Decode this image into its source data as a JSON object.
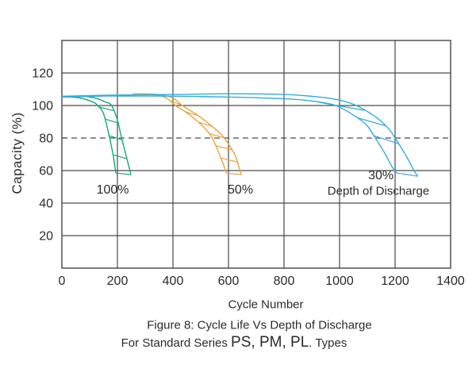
{
  "colors": {
    "background": "#ffffff",
    "grid": "#4a4a4a",
    "border": "#454545",
    "text": "#2b2b2b",
    "dod_100": "#12a77e",
    "dod_50": "#e9a43f",
    "dod_30": "#33acdf"
  },
  "caption": {
    "line1": "Figure 8: Cycle Life Vs Depth of Discharge",
    "line2_prefix": "For Standard Series ",
    "line2_series": "PS, PM, PL",
    "line2_suffix": ". Types"
  },
  "chart_data": {
    "type": "line",
    "title": "Figure 8: Cycle Life Vs Depth of Discharge",
    "xlabel": "Cycle Number",
    "ylabel": "Capacity (%)",
    "xlim": [
      0,
      1400
    ],
    "ylim": [
      0,
      140
    ],
    "x_ticks": [
      0,
      200,
      400,
      600,
      800,
      1000,
      1200,
      1400
    ],
    "y_ticks": [
      20,
      40,
      60,
      80,
      100,
      120
    ],
    "grid": true,
    "dashed_reference_line_y": 80,
    "legend_position": "none",
    "series": [
      {
        "name": "100% Depth of Discharge",
        "color": "#12a77e",
        "band_inner": [
          [
            0,
            105.3
          ],
          [
            60,
            104.8
          ],
          [
            110,
            102.3
          ],
          [
            129,
            100
          ],
          [
            150,
            95
          ],
          [
            172,
            80
          ],
          [
            185,
            69
          ],
          [
            194,
            58.5
          ]
        ],
        "band_outer": [
          [
            0,
            105.6
          ],
          [
            70,
            105.8
          ],
          [
            120,
            104.6
          ],
          [
            155,
            102.3
          ],
          [
            179,
            100
          ],
          [
            200,
            91
          ],
          [
            215,
            80
          ],
          [
            233,
            68
          ],
          [
            249,
            57.5
          ]
        ],
        "rung_levels": [
          98,
          90.5,
          80.2,
          68.5
        ],
        "rung_slant": 1.2
      },
      {
        "name": "50% Depth of Discharge",
        "color": "#e9a43f",
        "band_inner": [
          [
            310,
            107
          ],
          [
            360,
            105.8
          ],
          [
            385,
            103.5
          ],
          [
            409,
            100
          ],
          [
            450,
            95.5
          ],
          [
            490,
            90
          ],
          [
            520,
            85
          ],
          [
            542,
            80
          ],
          [
            565,
            71
          ],
          [
            580,
            64.5
          ],
          [
            592,
            58.5
          ]
        ],
        "band_outer": [
          [
            255,
            107.2
          ],
          [
            330,
            107
          ],
          [
            395,
            105
          ],
          [
            434,
            100
          ],
          [
            485,
            94.5
          ],
          [
            535,
            88
          ],
          [
            575,
            82
          ],
          [
            605,
            75
          ],
          [
            625,
            69
          ],
          [
            638,
            62
          ],
          [
            646,
            57.5
          ]
        ],
        "rung_levels": [
          101.5,
          95,
          88.5,
          81.5,
          74,
          66.5
        ],
        "rung_slant": 1.2
      },
      {
        "name": "30% Depth of Discharge",
        "color": "#33acdf",
        "band_inner": [
          [
            0,
            105.2
          ],
          [
            150,
            105.8
          ],
          [
            350,
            105.8
          ],
          [
            600,
            105.2
          ],
          [
            800,
            104.2
          ],
          [
            900,
            102.8
          ],
          [
            986,
            100
          ],
          [
            1060,
            93
          ],
          [
            1100,
            87.5
          ],
          [
            1129,
            80
          ],
          [
            1165,
            70
          ],
          [
            1190,
            62
          ],
          [
            1206,
            58.5
          ]
        ],
        "band_outer": [
          [
            0,
            105.7
          ],
          [
            150,
            106.3
          ],
          [
            400,
            106.8
          ],
          [
            600,
            107.2
          ],
          [
            800,
            106.8
          ],
          [
            920,
            105.3
          ],
          [
            1000,
            103.3
          ],
          [
            1060,
            100
          ],
          [
            1130,
            93
          ],
          [
            1175,
            86
          ],
          [
            1200,
            80
          ],
          [
            1240,
            69
          ],
          [
            1268,
            60
          ],
          [
            1282,
            56.5
          ]
        ],
        "rung_levels": [
          99.5,
          90,
          79
        ],
        "rung_slant": 2.5
      }
    ],
    "annotations": [
      {
        "text": "100%",
        "x": 183,
        "y": 47.8
      },
      {
        "text": "50%",
        "x": 643,
        "y": 47.8
      },
      {
        "text": "30%",
        "x": 1149,
        "y": 56.6
      },
      {
        "text": "Depth of Discharge",
        "x": 1140,
        "y": 47.5
      }
    ]
  }
}
